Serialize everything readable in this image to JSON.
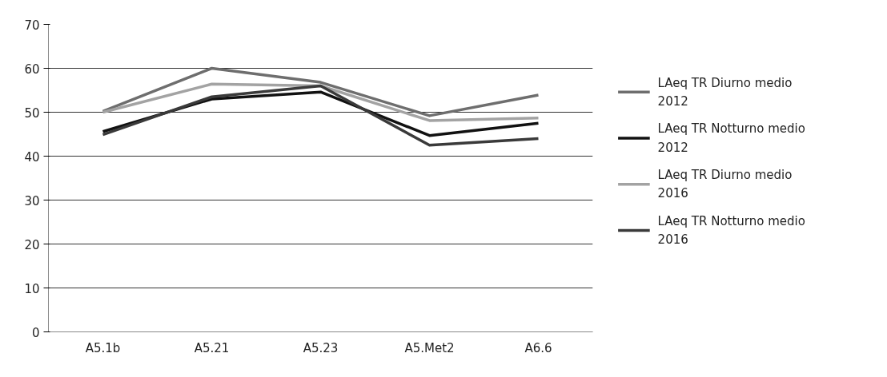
{
  "chart_data": {
    "type": "line",
    "categories": [
      "A5.1b",
      "A5.21",
      "A5.23",
      "A5.Met2",
      "A6.6"
    ],
    "series": [
      {
        "name": "LAeq TR Diurno medio 2012",
        "color": "#6e6e6e",
        "values": [
          50.2,
          60,
          56.8,
          49.2,
          53.9
        ]
      },
      {
        "name": "LAeq TR Notturno medio 2012",
        "color": "#111111",
        "values": [
          45.6,
          53,
          54.6,
          44.7,
          47.5
        ]
      },
      {
        "name": "LAeq TR Diurno medio 2016",
        "color": "#a3a3a3",
        "values": [
          50,
          56.4,
          56,
          48.1,
          48.7
        ]
      },
      {
        "name": "LAeq TR Notturno medio 2016",
        "color": "#3a3a3a",
        "values": [
          44.9,
          53.5,
          56,
          42.5,
          44
        ]
      }
    ],
    "ylim": [
      0,
      70
    ],
    "yticks": [
      0,
      10,
      20,
      30,
      40,
      50,
      60,
      70
    ],
    "grid": "y",
    "legend": "right",
    "marker": "none",
    "line_style": "solid"
  }
}
